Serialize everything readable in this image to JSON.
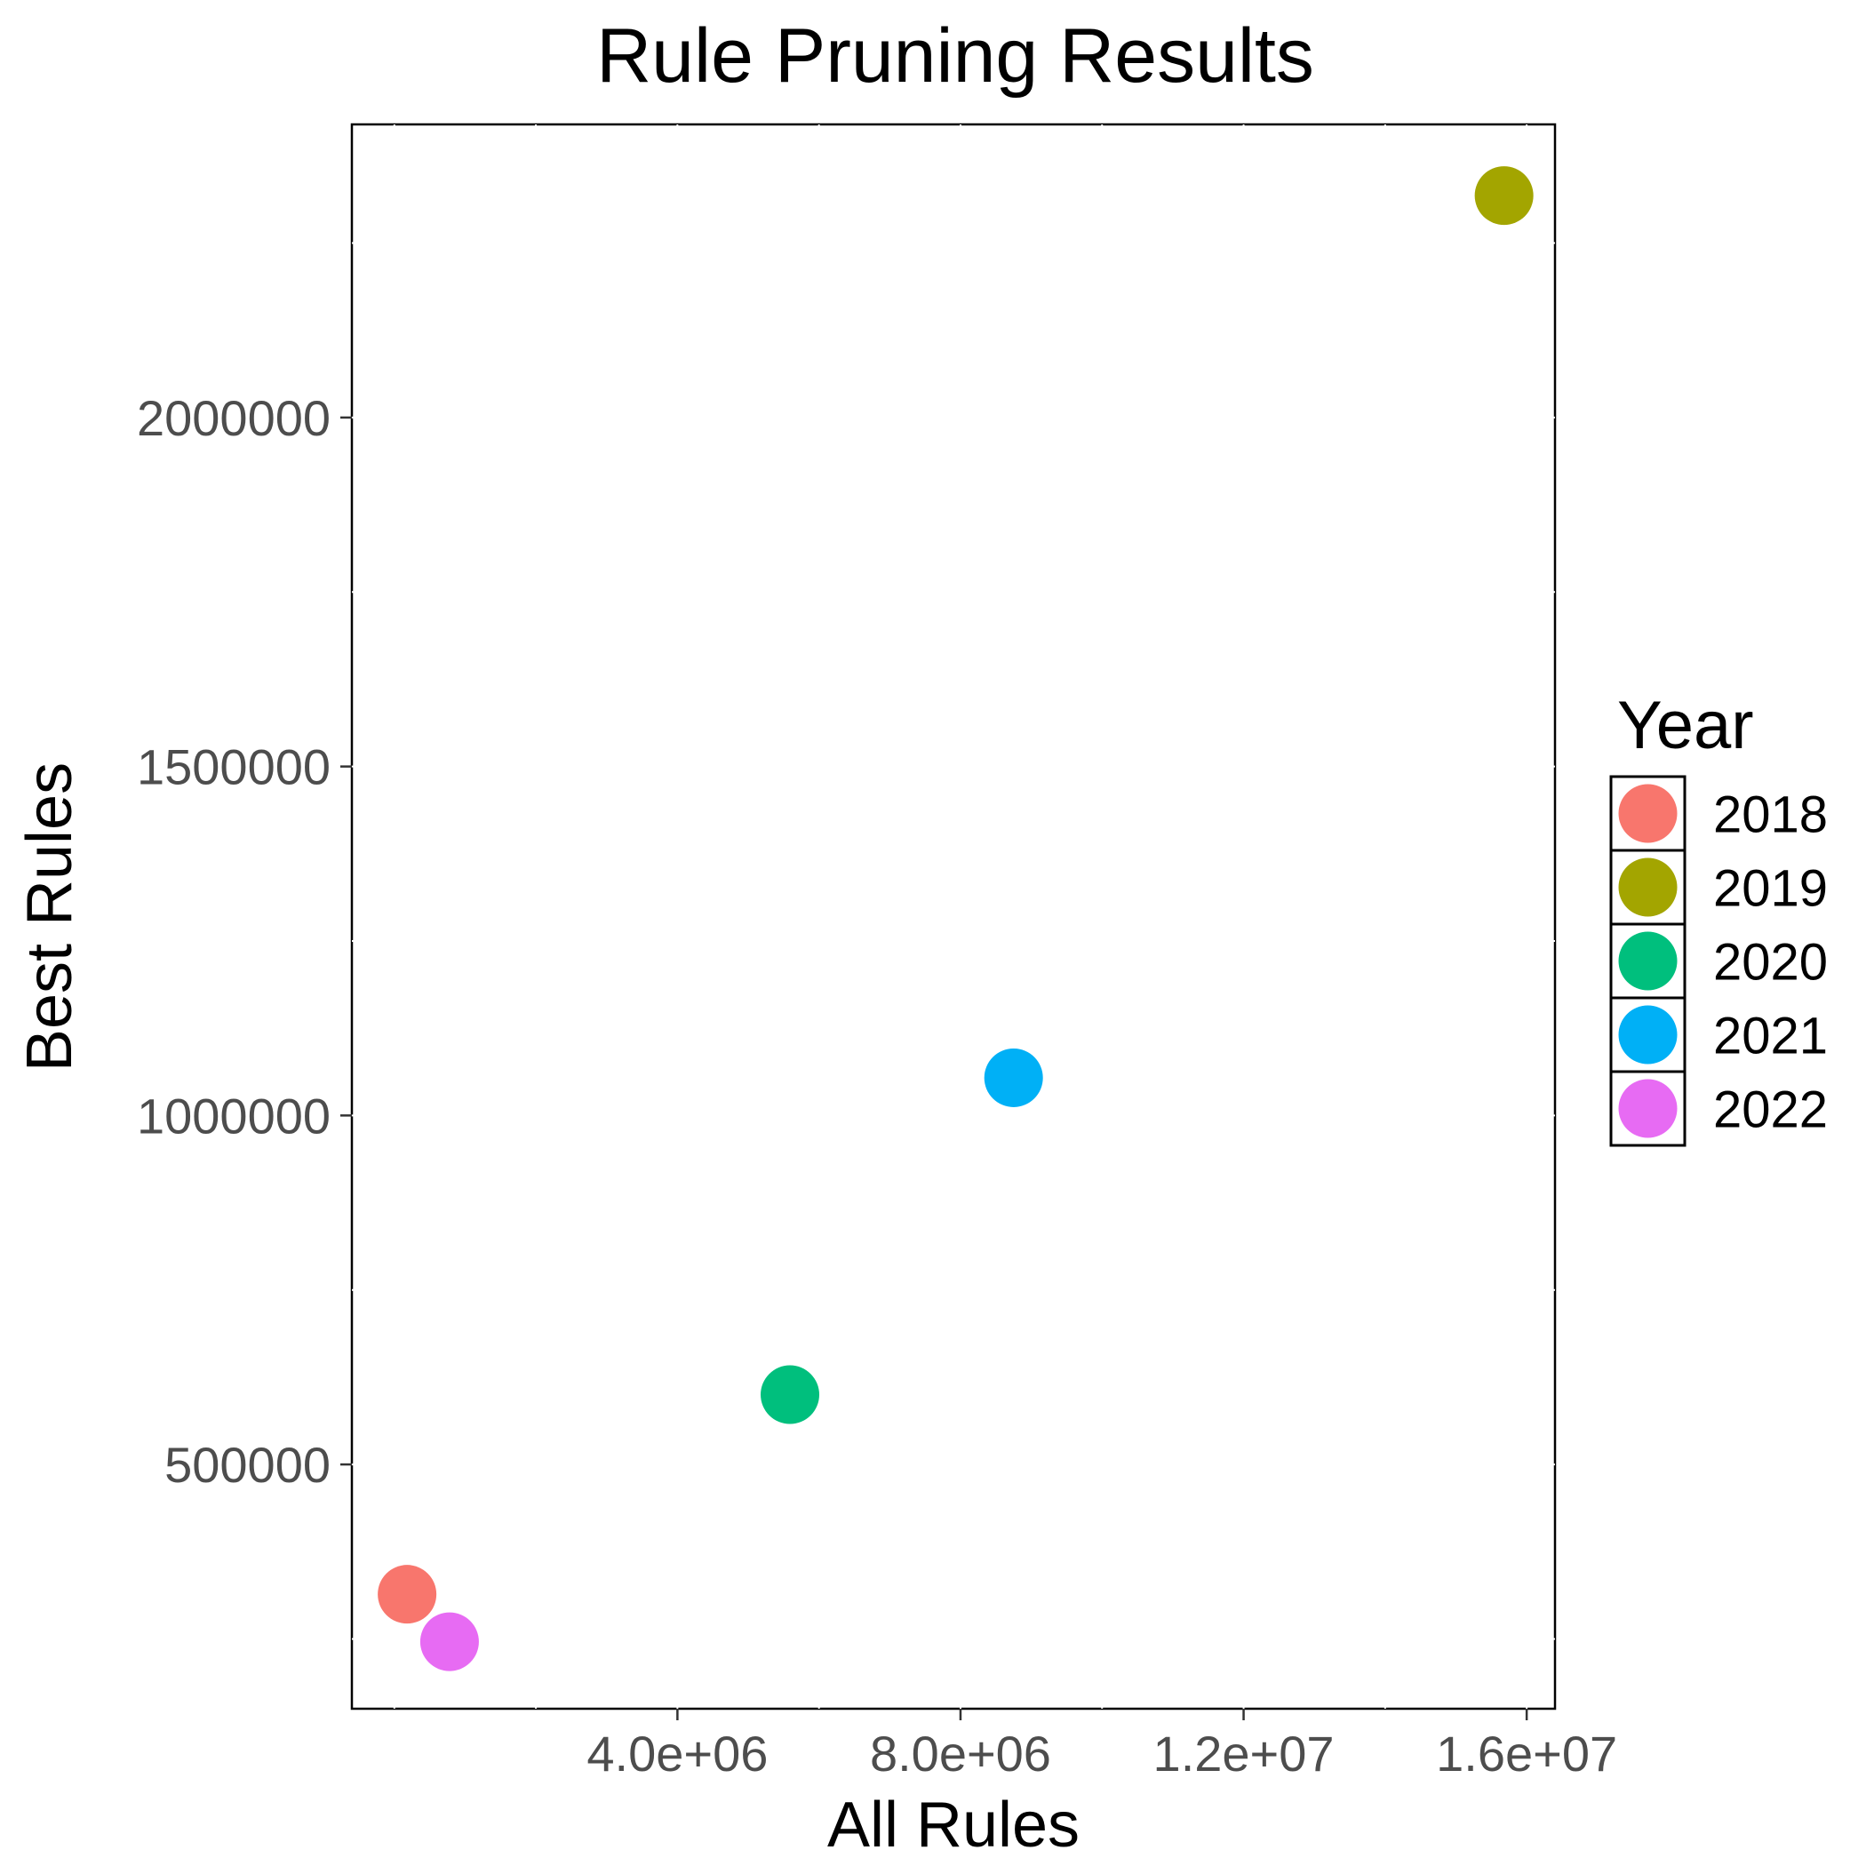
{
  "chart_data": {
    "type": "scatter",
    "title": "Rule Pruning Results",
    "xlabel": "All Rules",
    "ylabel": "Best Rules",
    "xlim": [
      -600000,
      16400000
    ],
    "ylim": [
      150000,
      2420000
    ],
    "x_ticks": [
      {
        "value": 4000000,
        "label": "4.0e+06"
      },
      {
        "value": 8000000,
        "label": "8.0e+06"
      },
      {
        "value": 12000000,
        "label": "1.2e+07"
      },
      {
        "value": 16000000,
        "label": "1.6e+07"
      }
    ],
    "y_ticks": [
      {
        "value": 500000,
        "label": "500000"
      },
      {
        "value": 1000000,
        "label": "1000000"
      },
      {
        "value": 1500000,
        "label": "1500000"
      },
      {
        "value": 2000000,
        "label": "2000000"
      }
    ],
    "grid": true,
    "legend": {
      "title": "Year",
      "placement": "right"
    },
    "points": [
      {
        "year": "2018",
        "x": 180000,
        "y": 314000,
        "color": "#F8766D"
      },
      {
        "year": "2019",
        "x": 15680000,
        "y": 2318000,
        "color": "#A3A500"
      },
      {
        "year": "2020",
        "x": 5590000,
        "y": 600000,
        "color": "#00BF7D"
      },
      {
        "year": "2021",
        "x": 8750000,
        "y": 1054000,
        "color": "#00B0F6"
      },
      {
        "year": "2022",
        "x": 780000,
        "y": 246000,
        "color": "#E76BF3"
      }
    ]
  }
}
